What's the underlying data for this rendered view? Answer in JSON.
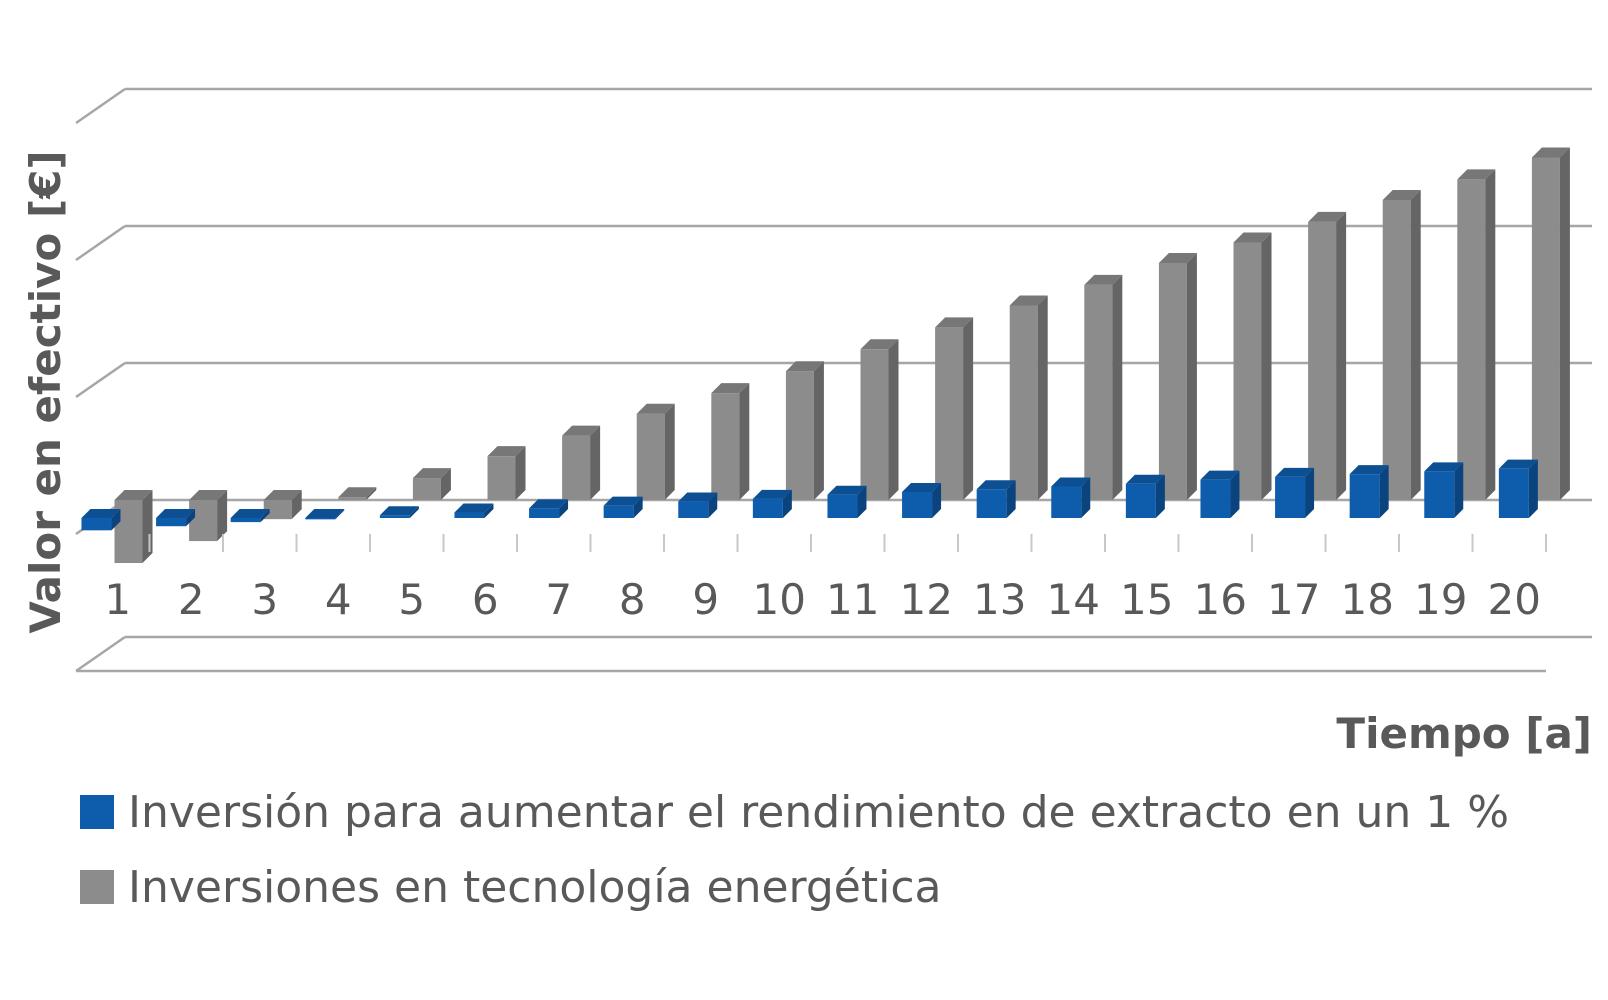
{
  "chart_data": {
    "type": "bar",
    "style": "3d-clustered-column",
    "title": "",
    "xlabel": "Tiempo [a]",
    "ylabel": "Valor en efectivo [€]",
    "categories": [
      "1",
      "2",
      "3",
      "4",
      "5",
      "6",
      "7",
      "8",
      "9",
      "10",
      "11",
      "12",
      "13",
      "14",
      "15",
      "16",
      "17",
      "18",
      "19",
      "20"
    ],
    "y_tick_labels_shown": false,
    "ylim": [
      -1,
      3
    ],
    "grid": true,
    "legend_position": "bottom-left",
    "series": [
      {
        "name": "Inversión para aumentar el rendimiento de extracto en un 1 %",
        "color": "#0E5DAD",
        "values": [
          -0.09,
          -0.06,
          -0.03,
          -0.01,
          0.02,
          0.04,
          0.07,
          0.09,
          0.12,
          0.14,
          0.17,
          0.19,
          0.21,
          0.23,
          0.25,
          0.28,
          0.3,
          0.32,
          0.34,
          0.36
        ]
      },
      {
        "name": "Inversiones en tecnología energética",
        "color": "#8C8C8C",
        "values": [
          -0.46,
          -0.3,
          -0.14,
          0.02,
          0.16,
          0.32,
          0.47,
          0.63,
          0.78,
          0.94,
          1.1,
          1.26,
          1.42,
          1.57,
          1.73,
          1.88,
          2.03,
          2.19,
          2.34,
          2.5
        ]
      }
    ]
  }
}
